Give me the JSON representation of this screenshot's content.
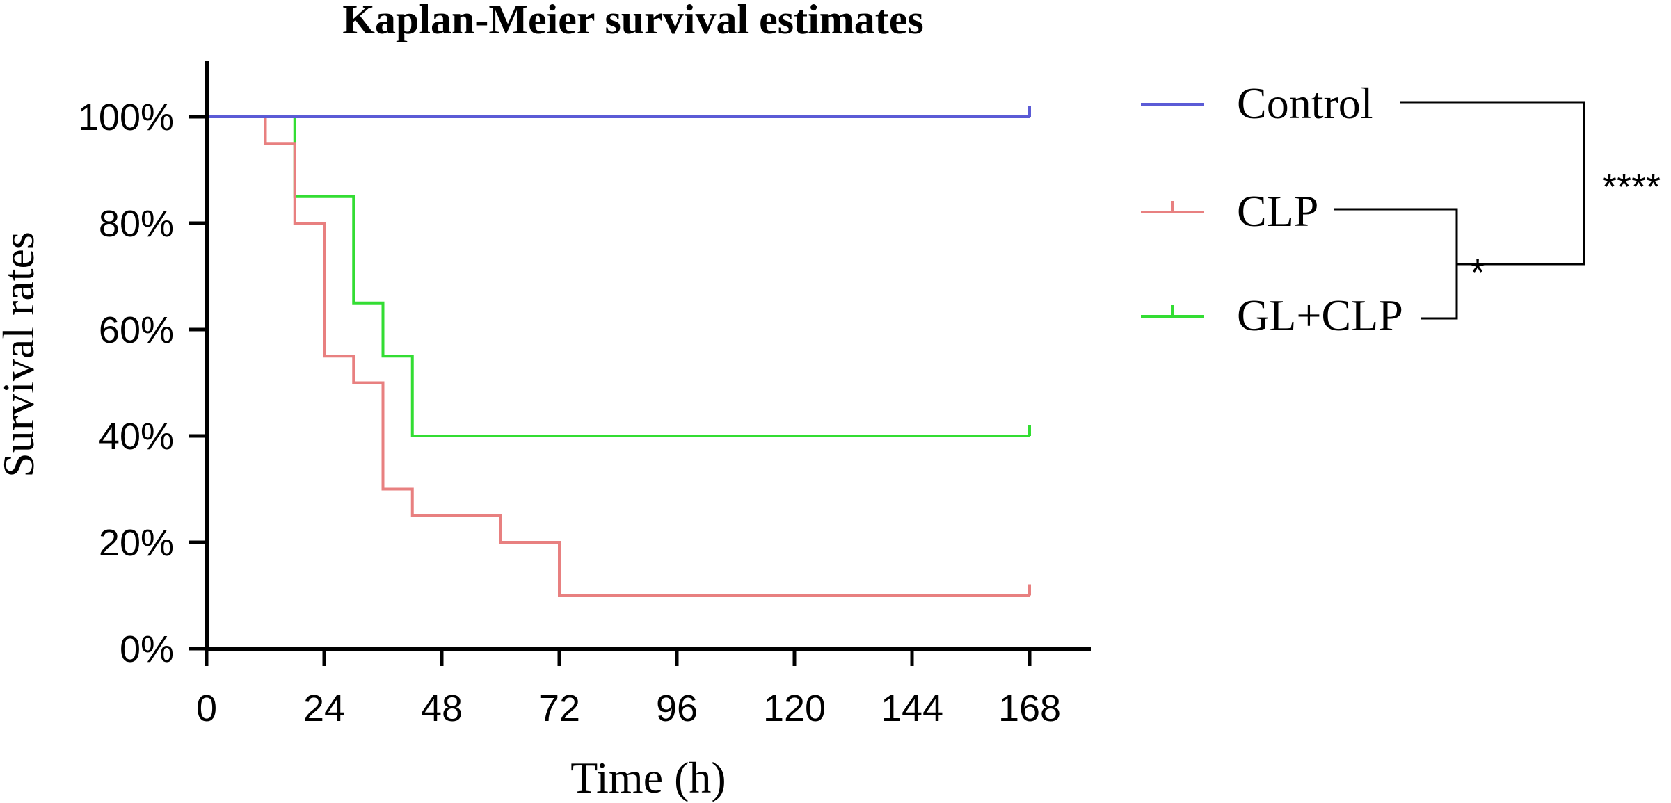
{
  "chart_data": {
    "type": "line",
    "step": true,
    "title": "Kaplan-Meier survival estimates",
    "xlabel": "Time (h)",
    "ylabel": "Survival rates",
    "xlim": [
      0,
      168
    ],
    "ylim": [
      0,
      100
    ],
    "x_ticks": [
      0,
      24,
      48,
      72,
      96,
      120,
      144,
      168
    ],
    "x_tick_labels": [
      "0",
      "24",
      "48",
      "72",
      "96",
      "120",
      "144",
      "168"
    ],
    "y_ticks": [
      0,
      20,
      40,
      60,
      80,
      100
    ],
    "y_tick_labels": [
      "0%",
      "20%",
      "40%",
      "60%",
      "80%",
      "100%"
    ],
    "grid": false,
    "legend_position": "right",
    "series": [
      {
        "name": "Control",
        "color": "#5b5bd6",
        "x": [
          0,
          168
        ],
        "y": [
          100,
          100
        ],
        "censor_at": [
          168
        ]
      },
      {
        "name": "CLP",
        "color": "#e88080",
        "x": [
          0,
          12,
          18,
          24,
          30,
          36,
          42,
          60,
          72,
          168
        ],
        "y": [
          100,
          95,
          80,
          55,
          50,
          30,
          25,
          20,
          10,
          10
        ],
        "censor_at": [
          168
        ]
      },
      {
        "name": "GL+CLP",
        "color": "#33dd33",
        "x": [
          0,
          18,
          30,
          36,
          42,
          168
        ],
        "y": [
          100,
          85,
          65,
          55,
          40,
          40
        ],
        "censor_at": [
          168
        ]
      }
    ],
    "significance": [
      {
        "between": [
          "CLP",
          "GL+CLP"
        ],
        "label": "*"
      },
      {
        "between": [
          "Control",
          "CLP & GL+CLP"
        ],
        "label": "****"
      }
    ]
  }
}
